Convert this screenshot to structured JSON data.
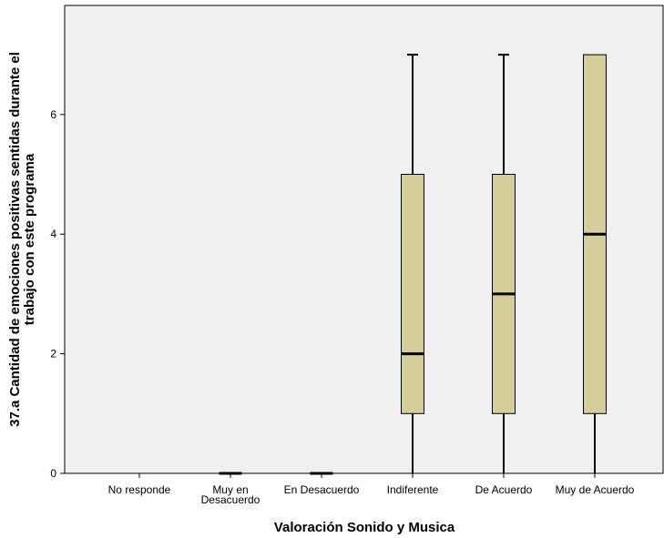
{
  "chart_data": {
    "type": "boxplot",
    "xlabel": "Valoración Sonido y Musica",
    "ylabel_line1": "37.a  Cantidad de emociones positivas sentidas durante el",
    "ylabel_line2": "trabajo con este programa",
    "categories": [
      {
        "label": [
          "No responde"
        ],
        "box": null
      },
      {
        "label": [
          "Muy en",
          "Desacuerdo"
        ],
        "box": {
          "min": 0,
          "q1": 0,
          "median": 0,
          "q3": 0,
          "max": 0
        }
      },
      {
        "label": [
          "En Desacuerdo"
        ],
        "box": {
          "min": 0,
          "q1": 0,
          "median": 0,
          "q3": 0,
          "max": 0
        }
      },
      {
        "label": [
          "Indiferente"
        ],
        "box": {
          "min": 0,
          "q1": 1,
          "median": 2,
          "q3": 5,
          "max": 7
        }
      },
      {
        "label": [
          "De Acuerdo"
        ],
        "box": {
          "min": 0,
          "q1": 1,
          "median": 3,
          "q3": 5,
          "max": 7
        }
      },
      {
        "label": [
          "Muy de Acuerdo"
        ],
        "box": {
          "min": 0,
          "q1": 1,
          "median": 4,
          "q3": 7,
          "max": 7
        }
      }
    ],
    "yticks": [
      0,
      2,
      4,
      6
    ],
    "ylim": [
      0,
      7.6
    ],
    "grid": false,
    "colors": {
      "plot_bg": "#f0f0f0",
      "box_fill": "#d3ce9a",
      "stroke": "#000000"
    }
  }
}
